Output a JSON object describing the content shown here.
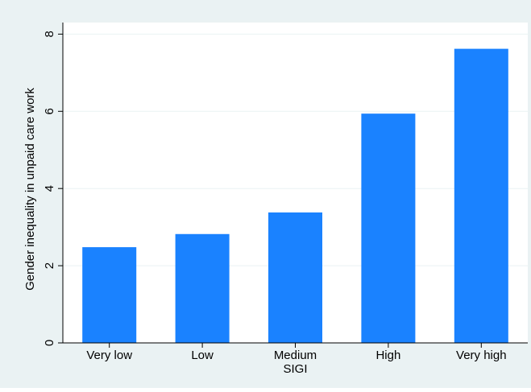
{
  "colors": {
    "outer_background": "#eaf2f3",
    "plot_background": "#ffffff",
    "bar": "#1a82ff",
    "grid": "#eaf2f3",
    "axis": "#000000",
    "text": "#000000"
  },
  "chart_data": {
    "type": "bar",
    "title": "",
    "xlabel": "SIGI",
    "ylabel": "Gender inequality in unpaid care work",
    "categories": [
      "Very low",
      "Low",
      "Medium",
      "High",
      "Very high"
    ],
    "values": [
      2.48,
      2.82,
      3.38,
      5.94,
      7.62
    ],
    "ylim": [
      0,
      8.3
    ],
    "yticks": [
      0,
      2,
      4,
      6,
      8
    ],
    "grid": true,
    "legend": "none"
  }
}
